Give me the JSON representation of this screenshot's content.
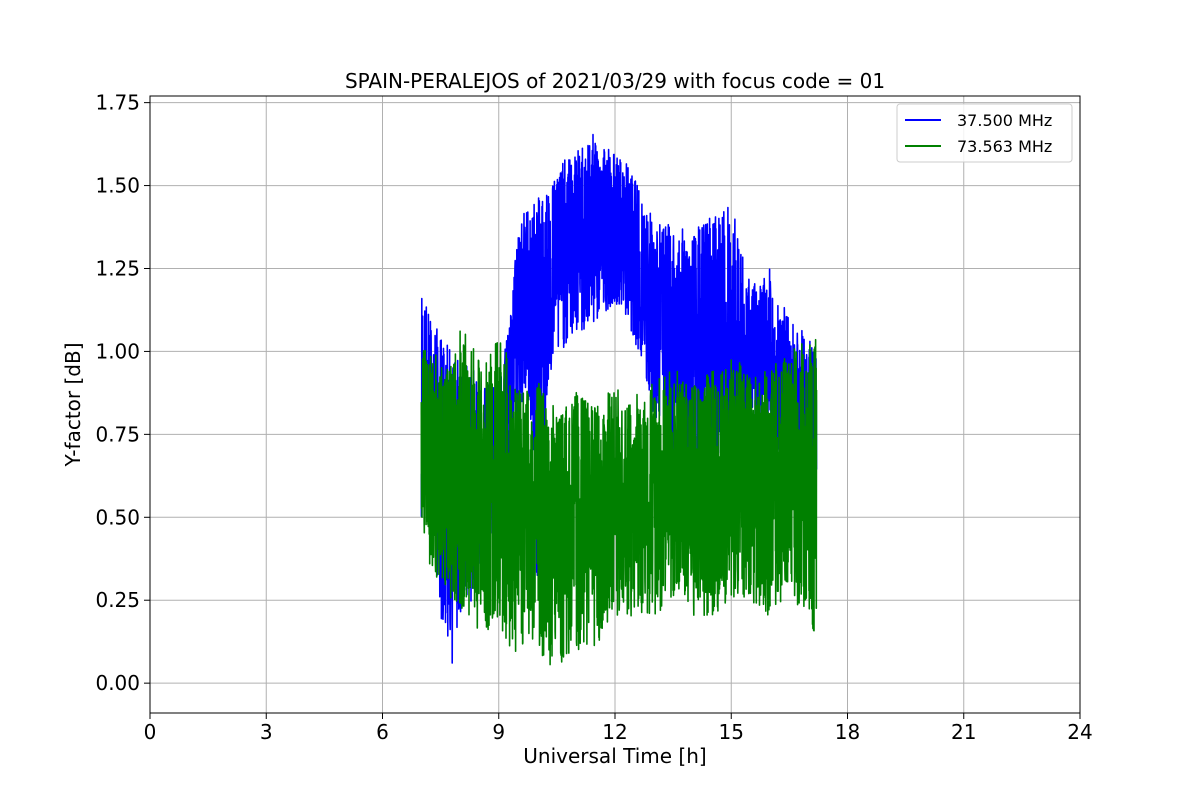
{
  "chart_data": {
    "type": "line",
    "title": "SPAIN-PERALEJOS of 2021/03/29 with focus code = 01",
    "xlabel": "Universal Time [h]",
    "ylabel": "Y-factor [dB]",
    "xlim": [
      0,
      24
    ],
    "ylim": [
      -0.09,
      1.77
    ],
    "xticks": [
      0,
      3,
      6,
      9,
      12,
      15,
      18,
      21,
      24
    ],
    "xtick_labels": [
      "0",
      "3",
      "6",
      "9",
      "12",
      "15",
      "18",
      "21",
      "24"
    ],
    "yticks": [
      0.0,
      0.25,
      0.5,
      0.75,
      1.0,
      1.25,
      1.5,
      1.75
    ],
    "ytick_labels": [
      "0.00",
      "0.25",
      "0.50",
      "0.75",
      "1.00",
      "1.25",
      "1.50",
      "1.75"
    ],
    "grid": true,
    "legend_position": "top-right",
    "series": [
      {
        "name": "37.500 MHz",
        "color": "#0000ff",
        "x": [
          7.0,
          7.2,
          7.5,
          7.8,
          8.0,
          8.3,
          8.6,
          9.0,
          9.3,
          9.5,
          9.8,
          10.0,
          10.3,
          10.6,
          11.0,
          11.3,
          11.6,
          12.0,
          12.3,
          12.6,
          13.0,
          13.5,
          14.0,
          14.5,
          15.0,
          15.5,
          16.0,
          16.5,
          17.0,
          17.2
        ],
        "upper": [
          1.22,
          1.12,
          1.05,
          1.0,
          0.98,
          0.95,
          0.92,
          0.9,
          1.1,
          1.4,
          1.45,
          1.46,
          1.5,
          1.57,
          1.6,
          1.65,
          1.66,
          1.6,
          1.57,
          1.5,
          1.4,
          1.38,
          1.36,
          1.42,
          1.45,
          1.2,
          1.25,
          1.1,
          1.05,
          1.0
        ],
        "center": [
          0.7,
          0.75,
          0.72,
          0.62,
          0.6,
          0.58,
          0.7,
          0.75,
          1.0,
          1.15,
          1.18,
          1.2,
          1.25,
          1.3,
          1.35,
          1.38,
          1.36,
          1.33,
          1.3,
          1.25,
          1.1,
          1.05,
          1.0,
          1.05,
          0.95,
          0.95,
          0.92,
          0.85,
          0.8,
          0.78
        ],
        "lower": [
          0.5,
          0.6,
          0.2,
          0.05,
          0.2,
          0.25,
          0.35,
          0.5,
          0.65,
          0.8,
          0.85,
          0.25,
          0.9,
          1.0,
          1.05,
          1.05,
          1.1,
          1.15,
          1.1,
          1.0,
          0.8,
          0.6,
          0.7,
          0.65,
          0.65,
          0.7,
          0.7,
          0.55,
          0.5,
          0.5
        ]
      },
      {
        "name": "73.563 MHz",
        "color": "#008000",
        "x": [
          7.0,
          7.2,
          7.5,
          7.8,
          8.0,
          8.3,
          8.6,
          9.0,
          9.3,
          9.5,
          9.8,
          10.0,
          10.3,
          10.6,
          11.0,
          11.3,
          11.6,
          12.0,
          12.3,
          12.6,
          13.0,
          13.5,
          14.0,
          14.5,
          15.0,
          15.5,
          16.0,
          16.5,
          17.0,
          17.2
        ],
        "upper": [
          1.0,
          1.02,
          1.0,
          0.95,
          1.08,
          1.02,
          0.95,
          1.08,
          0.95,
          0.88,
          0.9,
          0.92,
          0.85,
          0.82,
          0.88,
          0.85,
          0.85,
          0.9,
          0.85,
          0.88,
          0.92,
          0.95,
          0.9,
          0.95,
          1.0,
          0.92,
          0.95,
          1.0,
          1.05,
          1.04
        ],
        "center": [
          0.7,
          0.65,
          0.62,
          0.58,
          0.6,
          0.58,
          0.57,
          0.6,
          0.55,
          0.5,
          0.5,
          0.5,
          0.48,
          0.5,
          0.48,
          0.5,
          0.48,
          0.5,
          0.52,
          0.55,
          0.58,
          0.58,
          0.6,
          0.58,
          0.62,
          0.6,
          0.58,
          0.58,
          0.6,
          0.62
        ],
        "lower": [
          0.5,
          0.35,
          0.3,
          0.25,
          0.22,
          0.18,
          0.15,
          0.18,
          0.1,
          0.08,
          0.15,
          0.1,
          0.05,
          0.05,
          0.1,
          0.1,
          0.12,
          0.15,
          0.2,
          0.2,
          0.2,
          0.25,
          0.2,
          0.2,
          0.25,
          0.25,
          0.2,
          0.25,
          0.2,
          0.13
        ]
      }
    ]
  }
}
